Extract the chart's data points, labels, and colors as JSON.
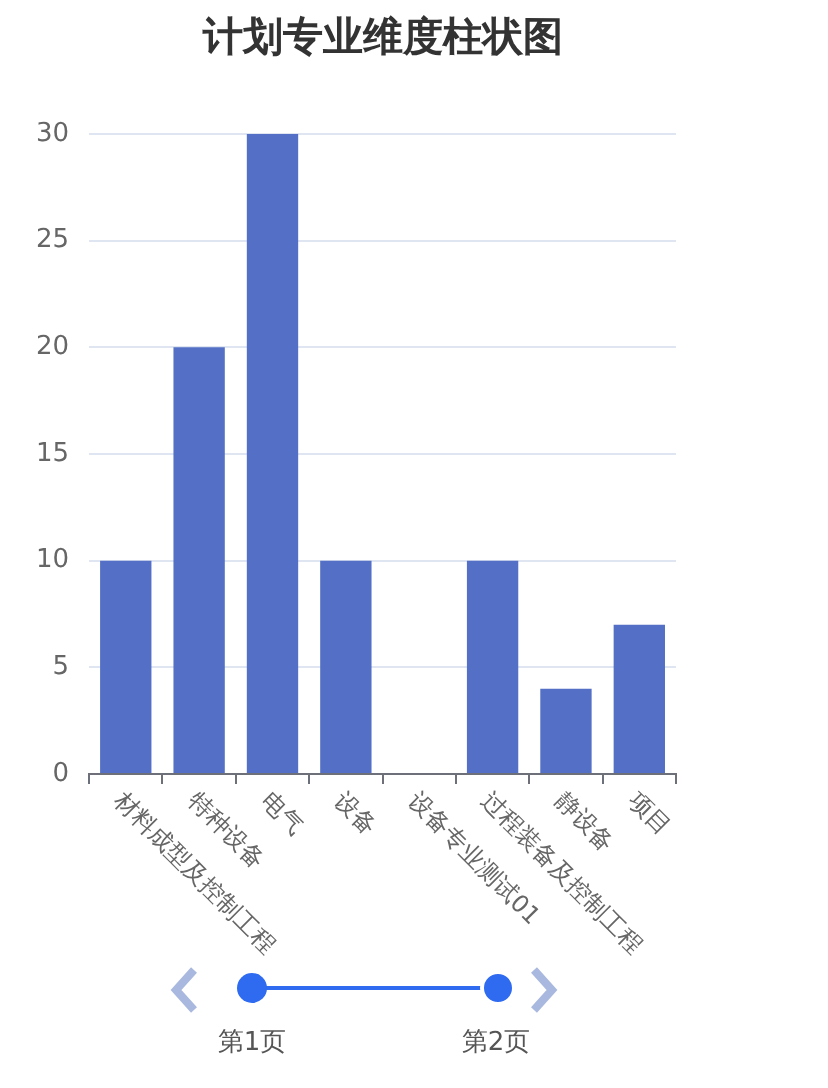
{
  "chart_data": {
    "type": "bar",
    "title": "计划专业维度柱状图",
    "categories": [
      "材料成型及控制工程",
      "特种设备",
      "电气",
      "设备",
      "设备专业测试01",
      "过程装备及控制工程",
      "静设备",
      "项目"
    ],
    "values": [
      10,
      20,
      30,
      10,
      0,
      10,
      4,
      7
    ],
    "color": "#5470c6",
    "ylim": [
      0,
      30
    ],
    "yticks": [
      0,
      5,
      10,
      15,
      20,
      25,
      30
    ],
    "grid": "y",
    "annotations": [
      "第1页",
      "第2页"
    ]
  }
}
